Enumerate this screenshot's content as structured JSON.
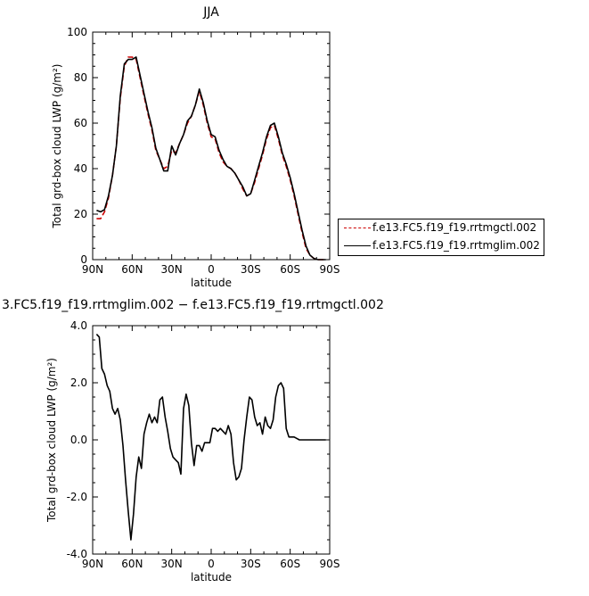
{
  "chart_data": [
    {
      "type": "line",
      "title": "JJA",
      "xlabel": "latitude",
      "ylabel": "Total grd-box cloud LWP (g/m²)",
      "xticks": [
        "90N",
        "60N",
        "30N",
        "0",
        "30S",
        "60S",
        "90S"
      ],
      "yticks": [
        "0",
        "20",
        "40",
        "60",
        "80",
        "100"
      ],
      "xlim": [
        90,
        -90
      ],
      "ylim": [
        0,
        100
      ],
      "legend": "right",
      "series": [
        {
          "name": "f.e13.FC5.f19_f19.rrtmgctl.002",
          "color": "#cc0000",
          "dash": "dashed",
          "x": [
            87,
            84,
            81,
            78,
            75,
            72,
            69,
            66,
            63,
            60,
            57,
            54,
            51,
            48,
            45,
            42,
            39,
            36,
            33,
            30,
            27,
            24,
            21,
            18,
            15,
            12,
            9,
            6,
            3,
            0,
            -3,
            -6,
            -9,
            -12,
            -15,
            -18,
            -21,
            -24,
            -27,
            -30,
            -33,
            -36,
            -39,
            -42,
            -45,
            -48,
            -51,
            -54,
            -57,
            -60,
            -63,
            -66,
            -69,
            -72,
            -75,
            -78,
            -81,
            -84,
            -87
          ],
          "values": [
            18,
            18,
            21,
            27,
            37,
            50,
            71,
            85,
            89,
            89,
            88,
            80,
            72,
            64,
            57,
            48,
            44,
            40,
            41,
            48,
            47,
            51,
            55,
            60,
            63,
            68,
            74,
            68,
            60,
            54,
            53,
            47,
            43,
            41,
            40,
            38,
            35,
            31,
            28,
            29,
            34,
            40,
            46,
            53,
            58,
            59,
            53,
            46,
            41,
            35,
            28,
            20,
            12,
            5,
            2,
            0.5,
            0,
            0,
            0
          ]
        },
        {
          "name": "f.e13.FC5.f19_f19.rrtmglim.002",
          "color": "#000000",
          "dash": "solid",
          "x": [
            87,
            84,
            81,
            78,
            75,
            72,
            69,
            66,
            63,
            60,
            57,
            54,
            51,
            48,
            45,
            42,
            39,
            36,
            33,
            30,
            27,
            24,
            21,
            18,
            15,
            12,
            9,
            6,
            3,
            0,
            -3,
            -6,
            -9,
            -12,
            -15,
            -18,
            -21,
            -24,
            -27,
            -30,
            -33,
            -36,
            -39,
            -42,
            -45,
            -48,
            -51,
            -54,
            -57,
            -60,
            -63,
            -66,
            -69,
            -72,
            -75,
            -78,
            -81,
            -84,
            -87
          ],
          "values": [
            21.7,
            21,
            22,
            28,
            37,
            50,
            72,
            86,
            88,
            88,
            89,
            81,
            73,
            65,
            58,
            49,
            44,
            39,
            39,
            50,
            46,
            51,
            55,
            61,
            63,
            68,
            75,
            69,
            61,
            55,
            54,
            48,
            44,
            41,
            40,
            38,
            35,
            32,
            28,
            29,
            35,
            41,
            47,
            54,
            59,
            60,
            54,
            47,
            42,
            36,
            29,
            21,
            13,
            6,
            2,
            0.5,
            0,
            0,
            0
          ]
        }
      ]
    },
    {
      "type": "line",
      "title": "3.FC5.f19_f19.rrtmglim.002 − f.e13.FC5.f19_f19.rrtmgctl.002",
      "xlabel": "latitude",
      "ylabel": "Total grd-box cloud LWP (g/m²)",
      "xticks": [
        "90N",
        "60N",
        "30N",
        "0",
        "30S",
        "60S",
        "90S"
      ],
      "yticks": [
        "-4.0",
        "-2.0",
        "0.0",
        "2.0",
        "4.0"
      ],
      "xlim": [
        90,
        -90
      ],
      "ylim": [
        -4,
        4
      ],
      "series": [
        {
          "color": "#000000",
          "x": [
            87,
            85,
            83,
            81,
            79,
            77,
            75,
            73,
            71,
            69,
            67,
            65,
            63,
            61,
            59,
            57,
            55,
            53,
            51,
            49,
            47,
            45,
            43,
            41,
            39,
            37,
            35,
            33,
            31,
            29,
            27,
            25,
            23,
            21,
            19,
            17,
            15,
            13,
            11,
            9,
            7,
            5,
            3,
            1,
            -1,
            -3,
            -5,
            -7,
            -9,
            -11,
            -13,
            -15,
            -17,
            -19,
            -21,
            -23,
            -25,
            -27,
            -29,
            -31,
            -33,
            -35,
            -37,
            -39,
            -41,
            -43,
            -45,
            -47,
            -49,
            -51,
            -53,
            -55,
            -57,
            -59,
            -61,
            -63,
            -65,
            -67,
            -69,
            -71,
            -73,
            -75,
            -77,
            -79,
            -81,
            -83,
            -85,
            -87
          ],
          "values": [
            3.7,
            3.6,
            2.5,
            2.3,
            1.9,
            1.7,
            1.1,
            0.9,
            1.1,
            0.7,
            -0.2,
            -1.4,
            -2.5,
            -3.5,
            -2.6,
            -1.3,
            -0.6,
            -1.0,
            0.2,
            0.6,
            0.9,
            0.6,
            0.8,
            0.6,
            1.4,
            1.5,
            0.8,
            0.3,
            -0.3,
            -0.6,
            -0.7,
            -0.8,
            -1.2,
            1.1,
            1.6,
            1.2,
            -0.1,
            -0.9,
            -0.2,
            -0.2,
            -0.4,
            -0.1,
            -0.1,
            -0.1,
            0.4,
            0.4,
            0.3,
            0.4,
            0.3,
            0.2,
            0.5,
            0.2,
            -0.8,
            -1.4,
            -1.3,
            -1.0,
            0.0,
            0.8,
            1.5,
            1.4,
            0.8,
            0.5,
            0.6,
            0.2,
            0.8,
            0.5,
            0.4,
            0.7,
            1.5,
            1.9,
            2.0,
            1.8,
            0.4,
            0.1,
            0.1,
            0.1,
            0.05,
            0,
            0,
            0,
            0,
            0,
            0,
            0,
            0,
            0,
            0,
            0
          ]
        }
      ]
    }
  ]
}
